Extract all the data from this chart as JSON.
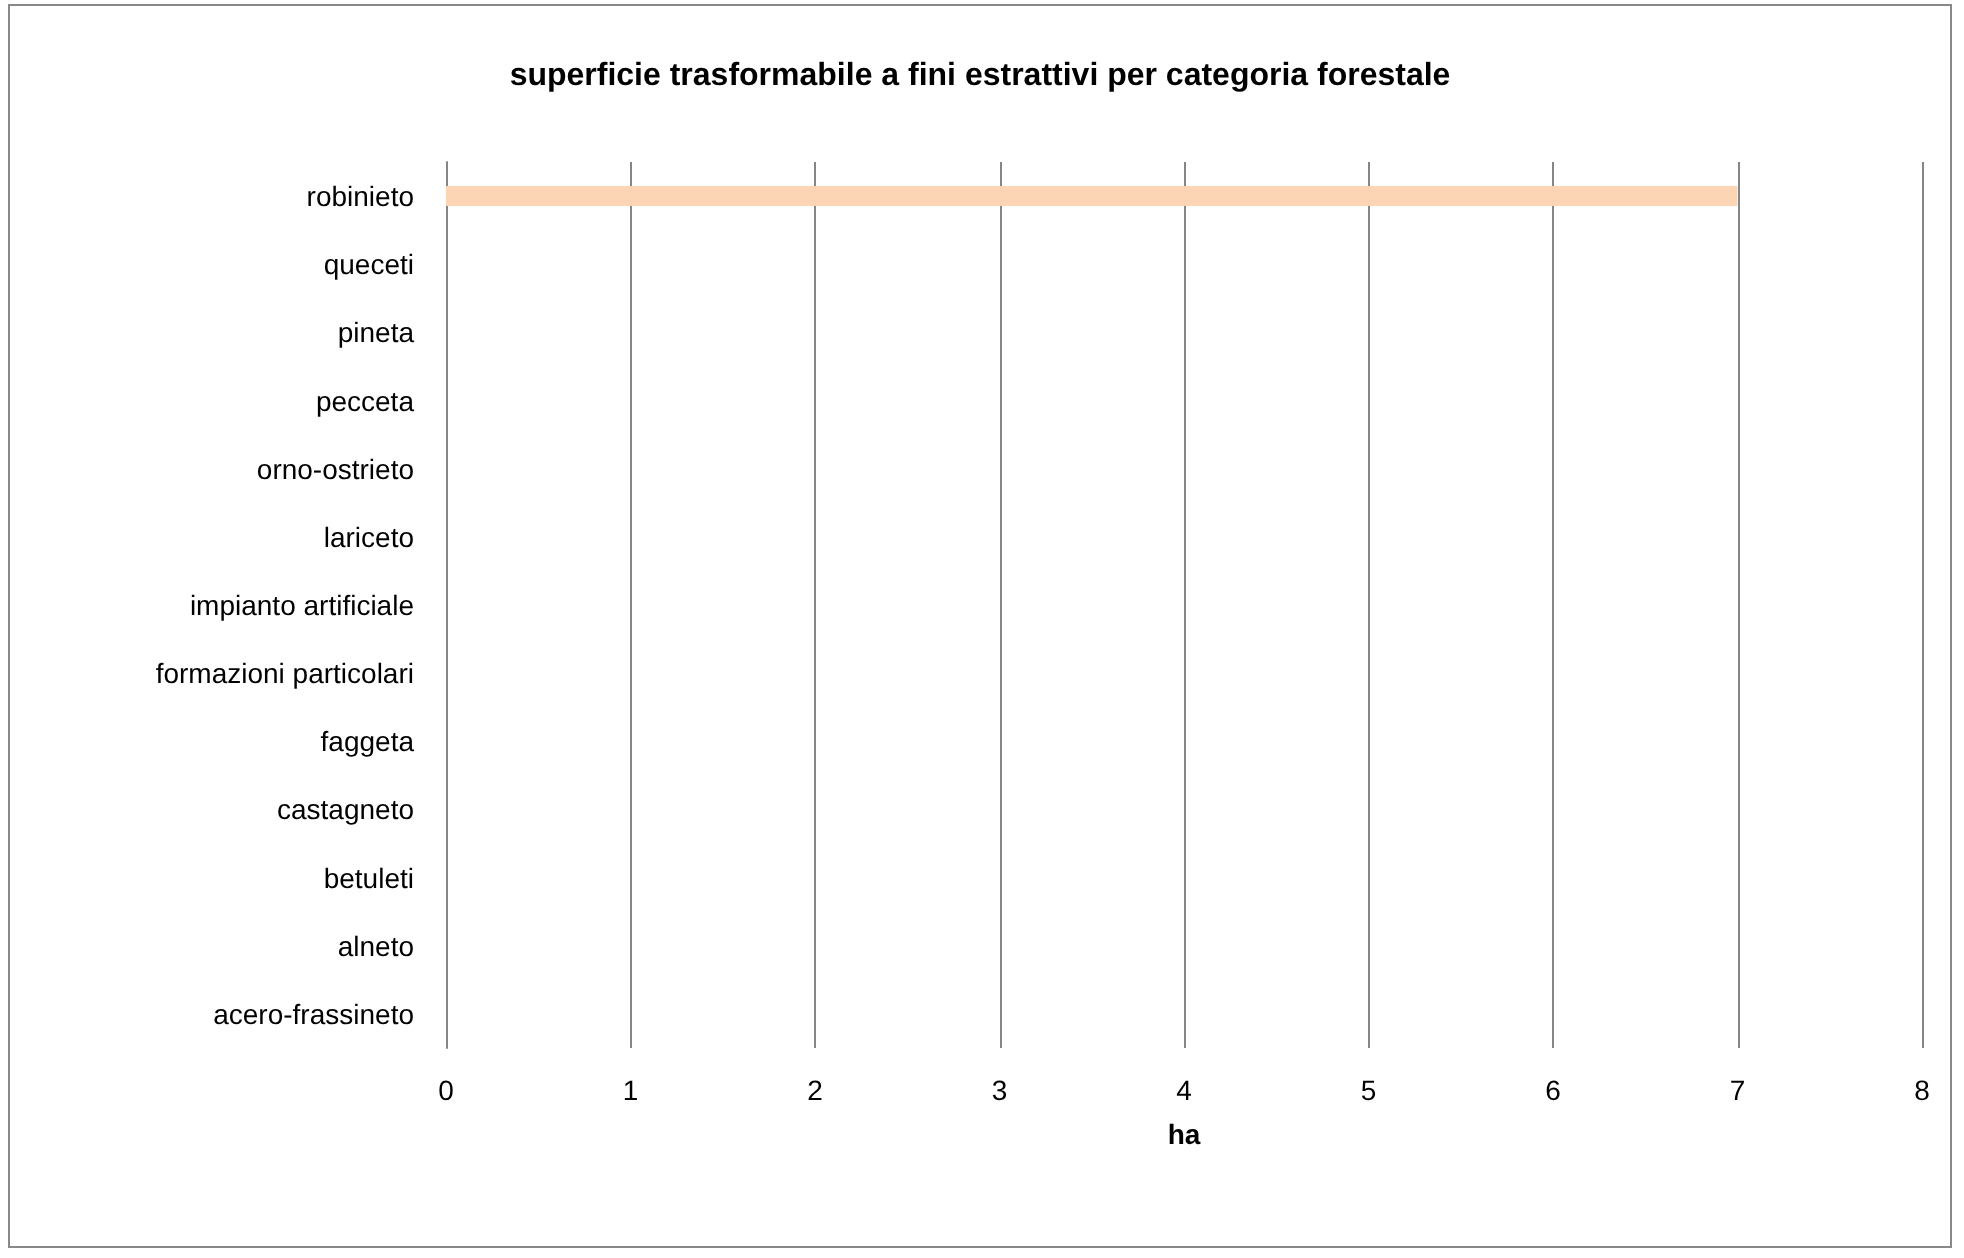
{
  "chart_data": {
    "type": "bar",
    "orientation": "horizontal",
    "title": "superficie trasformabile a fini estrattivi per categoria forestale",
    "xlabel": "ha",
    "categories": [
      "robinieto",
      "queceti",
      "pineta",
      "pecceta",
      "orno-ostrieto",
      "lariceto",
      "impianto artificiale",
      "formazioni particolari",
      "faggeta",
      "castagneto",
      "betuleti",
      "alneto",
      "acero-frassineto"
    ],
    "values": [
      7,
      0,
      0,
      0,
      0,
      0,
      0,
      0,
      0,
      0,
      0,
      0,
      0
    ],
    "color": "#fcd5b4",
    "xlim": [
      0,
      8
    ],
    "xticks": [
      0,
      1,
      2,
      3,
      4,
      5,
      6,
      7,
      8
    ],
    "grid": "x"
  }
}
